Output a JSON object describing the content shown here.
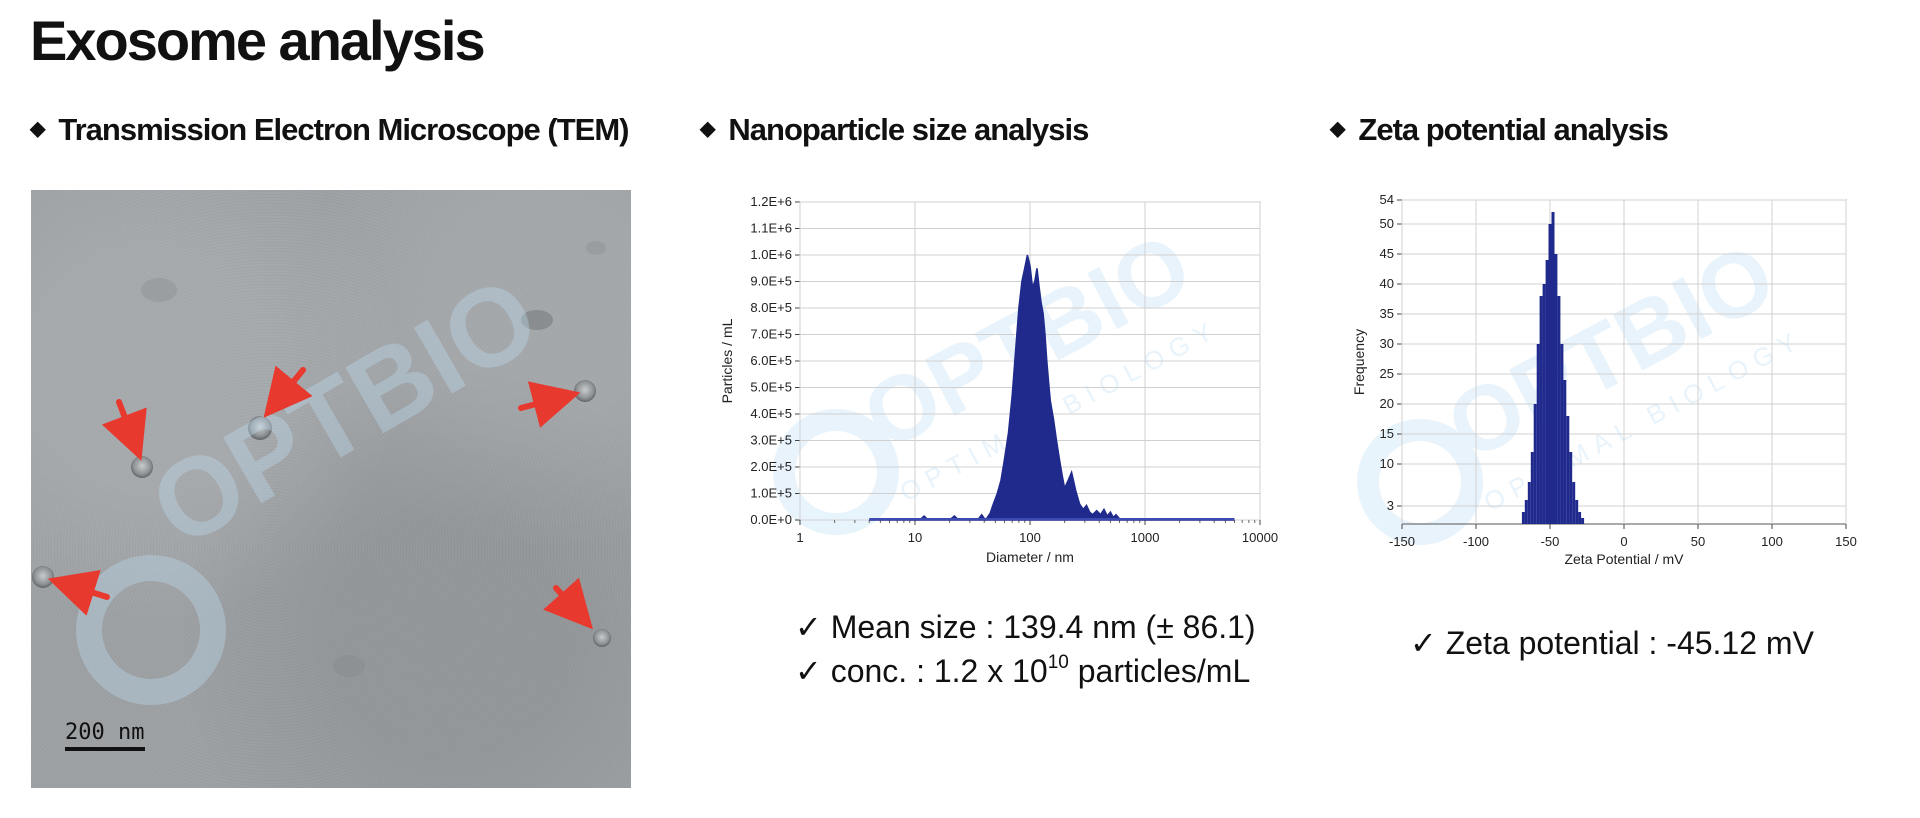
{
  "page": {
    "title": "Exosome analysis",
    "bullet_glyph": "◆"
  },
  "sections": {
    "tem": {
      "heading": "Transmission Electron Microscope (TEM)"
    },
    "nano": {
      "heading": "Nanoparticle size analysis"
    },
    "zeta": {
      "heading": "Zeta potential analysis"
    }
  },
  "tem_image": {
    "scale_label": "200 nm",
    "arrow_color": "#e8392e",
    "background_color": "#9ea2a5"
  },
  "watermark": {
    "brand": "OPTBIO",
    "tagline": "OPTIMAL BIOLOGY",
    "color": "#d6ebf8"
  },
  "results": {
    "mean_size": "✓ Mean size : 139.4 nm (± 86.1)",
    "conc_prefix": "✓ conc. : 1.2  x 10",
    "conc_exponent": "10",
    "conc_suffix": " particles/mL",
    "zeta": "✓ Zeta potential : -45.12 mV"
  },
  "chart_data": [
    {
      "type": "area",
      "xlabel": "Diameter / nm",
      "ylabel": "Particles / mL",
      "x_scale": "log",
      "xlim": [
        1,
        10000
      ],
      "ylim": [
        0,
        1200000
      ],
      "x_ticks": [
        "1",
        "10",
        "100",
        "1000",
        "10000"
      ],
      "y_ticks": [
        "0.0E+0",
        "1.0E+5",
        "2.0E+5",
        "3.0E+5",
        "4.0E+5",
        "5.0E+5",
        "6.0E+5",
        "7.0E+5",
        "8.0E+5",
        "9.0E+5",
        "1.0E+6",
        "1.1E+6",
        "1.2E+6"
      ],
      "grid": true,
      "color": "#1f2a8c",
      "series": [
        {
          "x": [
            4,
            11,
            12,
            13,
            20,
            22,
            24,
            35,
            38,
            41,
            45,
            48,
            52,
            56,
            60,
            65,
            70,
            75,
            80,
            85,
            90,
            95,
            100,
            105,
            110,
            115,
            120,
            125,
            130,
            135,
            140,
            145,
            150,
            160,
            170,
            180,
            190,
            200,
            215,
            230,
            250,
            270,
            290,
            310,
            330,
            350,
            380,
            410,
            440,
            470,
            500,
            530,
            560,
            600,
            650,
            700,
            6000
          ],
          "y": [
            0,
            0,
            15000,
            0,
            0,
            15000,
            0,
            0,
            20000,
            0,
            25000,
            60000,
            100000,
            150000,
            230000,
            330000,
            470000,
            640000,
            800000,
            900000,
            950000,
            1000000,
            960000,
            880000,
            900000,
            950000,
            880000,
            820000,
            780000,
            700000,
            600000,
            520000,
            450000,
            380000,
            300000,
            230000,
            170000,
            120000,
            150000,
            180000,
            110000,
            60000,
            40000,
            55000,
            30000,
            20000,
            35000,
            20000,
            40000,
            15000,
            30000,
            10000,
            20000,
            5000,
            0,
            0,
            0
          ]
        }
      ]
    },
    {
      "type": "bar",
      "xlabel": "Zeta Potential / mV",
      "ylabel": "Frequency",
      "xlim": [
        -150,
        150
      ],
      "ylim": [
        0,
        54
      ],
      "x_ticks": [
        "-150",
        "-100",
        "-50",
        "0",
        "50",
        "100",
        "150"
      ],
      "y_ticks": [
        "3",
        "10",
        "15",
        "20",
        "25",
        "30",
        "35",
        "40",
        "45",
        "50",
        "54"
      ],
      "grid": true,
      "color": "#1f2a8c",
      "series": [
        {
          "x": [
            -68,
            -66,
            -64,
            -62,
            -60,
            -58,
            -56,
            -54,
            -52,
            -50,
            -48,
            -46,
            -44,
            -42,
            -40,
            -38,
            -36,
            -34,
            -32,
            -30,
            -28
          ],
          "y": [
            2,
            4,
            7,
            12,
            20,
            30,
            38,
            40,
            44,
            50,
            52,
            45,
            38,
            30,
            24,
            18,
            12,
            7,
            4,
            2,
            1
          ]
        }
      ]
    }
  ]
}
